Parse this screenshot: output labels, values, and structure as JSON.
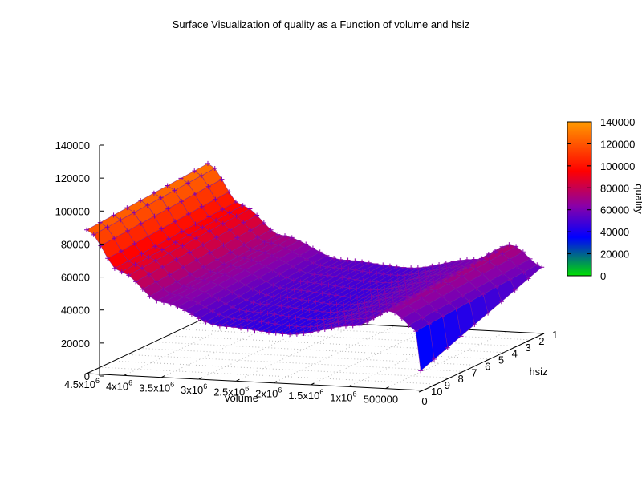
{
  "chart_data": {
    "type": "surface3d",
    "title": "Surface Visualization of quality as a Function of volume and hsiz",
    "xlabel": "volume",
    "ylabel": "hsiz",
    "zlabel": "quality",
    "x_ticks": [
      {
        "value": 500000,
        "base": "500000",
        "exp": ""
      },
      {
        "value": 1000000,
        "base": "1x10",
        "exp": "6"
      },
      {
        "value": 1500000,
        "base": "1.5x10",
        "exp": "6"
      },
      {
        "value": 2000000,
        "base": "2x10",
        "exp": "6"
      },
      {
        "value": 2500000,
        "base": "2.5x10",
        "exp": "6"
      },
      {
        "value": 3000000,
        "base": "3x10",
        "exp": "6"
      },
      {
        "value": 3500000,
        "base": "3.5x10",
        "exp": "6"
      },
      {
        "value": 4000000,
        "base": "4x10",
        "exp": "6"
      },
      {
        "value": 4500000,
        "base": "4.5x10",
        "exp": "6"
      }
    ],
    "x_zero_label": "0",
    "y_ticks": [
      "1",
      "2",
      "3",
      "4",
      "5",
      "6",
      "7",
      "8",
      "9",
      "10"
    ],
    "z_ticks": [
      "0",
      "20000",
      "40000",
      "60000",
      "80000",
      "100000",
      "120000",
      "140000"
    ],
    "colorbar_ticks": [
      "0",
      "20000",
      "40000",
      "60000",
      "80000",
      "100000",
      "120000",
      "140000"
    ],
    "colorbar_range": [
      0,
      140000
    ],
    "x_range": [
      0,
      4500000
    ],
    "y_range": [
      1,
      10
    ],
    "z_range": [
      0,
      140000
    ],
    "palette": [
      "#00e000",
      "#0000ff",
      "#8800aa",
      "#ff0000",
      "#ff8c00"
    ],
    "surface_samples": {
      "volume": [
        100000,
        1000000,
        2000000,
        3000000,
        4000000,
        4500000
      ],
      "hsiz_low_quality": [
        40000,
        74000,
        52000,
        60000,
        98000,
        128000
      ],
      "hsiz_high_quality": [
        24000,
        68000,
        48000,
        56000,
        92000,
        120000
      ]
    },
    "mark_color": "#8800aa",
    "mark_symbol": "+"
  }
}
